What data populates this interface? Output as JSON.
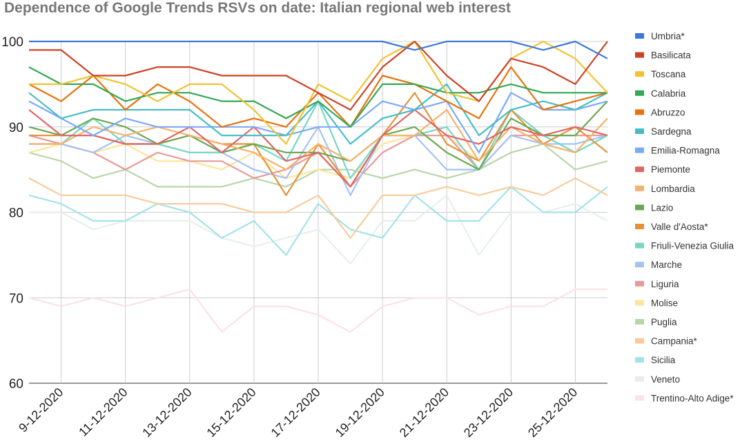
{
  "chart_data": {
    "type": "line",
    "title": "Dependence of Google Trends RSVs on date: Italian regional web interest",
    "xlabel": "",
    "ylabel": "",
    "ylim": [
      60,
      100
    ],
    "yticks": [
      60,
      70,
      80,
      90,
      100
    ],
    "grid": true,
    "legend": "right",
    "x": [
      "8-12-2020",
      "9-12-2020",
      "10-12-2020",
      "11-12-2020",
      "12-12-2020",
      "13-12-2020",
      "14-12-2020",
      "15-12-2020",
      "16-12-2020",
      "17-12-2020",
      "18-12-2020",
      "19-12-2020",
      "20-12-2020",
      "21-12-2020",
      "22-12-2020",
      "23-12-2020",
      "24-12-2020",
      "25-12-2020",
      "26-12-2020"
    ],
    "tick_labels": [
      "9-12-2020",
      "11-12-2020",
      "13-12-2020",
      "15-12-2020",
      "17-12-2020",
      "19-12-2020",
      "21-12-2020",
      "23-12-2020",
      "25-12-2020"
    ],
    "series": [
      {
        "name": "Umbria*",
        "color": "#3b78d8",
        "values": [
          100,
          100,
          100,
          100,
          100,
          100,
          100,
          100,
          100,
          100,
          100,
          100,
          99,
          100,
          100,
          100,
          99,
          100,
          98
        ]
      },
      {
        "name": "Basilicata",
        "color": "#cc4125",
        "values": [
          99,
          99,
          96,
          96,
          97,
          97,
          96,
          96,
          96,
          94,
          92,
          97,
          100,
          96,
          93,
          98,
          97,
          95,
          100
        ]
      },
      {
        "name": "Toscana",
        "color": "#f1c232",
        "values": [
          95,
          95,
          96,
          95,
          93,
          95,
          95,
          92,
          88,
          95,
          93,
          98,
          100,
          94,
          93,
          98,
          100,
          98,
          94
        ]
      },
      {
        "name": "Calabria",
        "color": "#34a853",
        "values": [
          97,
          95,
          95,
          93,
          94,
          94,
          93,
          93,
          91,
          93,
          90,
          95,
          95,
          94,
          94,
          95,
          94,
          94,
          94
        ]
      },
      {
        "name": "Abruzzo",
        "color": "#e8710a",
        "values": [
          95,
          93,
          96,
          92,
          95,
          93,
          90,
          91,
          90,
          94,
          90,
          96,
          95,
          93,
          91,
          97,
          92,
          93,
          94
        ]
      },
      {
        "name": "Sardegna",
        "color": "#46bdc6",
        "values": [
          94,
          91,
          92,
          92,
          92,
          92,
          89,
          89,
          89,
          93,
          88,
          91,
          92,
          95,
          89,
          92,
          93,
          92,
          94
        ]
      },
      {
        "name": "Emilia-Romagna",
        "color": "#7baaf7",
        "values": [
          93,
          91,
          89,
          91,
          90,
          90,
          90,
          90,
          89,
          90,
          90,
          93,
          92,
          93,
          87,
          94,
          92,
          92,
          93
        ]
      },
      {
        "name": "Piemonte",
        "color": "#e06666",
        "values": [
          92,
          89,
          89,
          88,
          88,
          90,
          87,
          90,
          86,
          87,
          83,
          89,
          92,
          89,
          88,
          90,
          89,
          90,
          89
        ]
      },
      {
        "name": "Lombardia",
        "color": "#f6b26b",
        "values": [
          88,
          88,
          90,
          89,
          90,
          89,
          88,
          87,
          85,
          88,
          86,
          89,
          89,
          92,
          86,
          90,
          88,
          87,
          91
        ]
      },
      {
        "name": "Lazio",
        "color": "#6aa84f",
        "values": [
          90,
          89,
          91,
          90,
          88,
          89,
          87,
          88,
          87,
          87,
          86,
          89,
          90,
          87,
          85,
          91,
          89,
          89,
          93
        ]
      },
      {
        "name": "Valle d'Aosta*",
        "color": "#e69138",
        "values": [
          89,
          89,
          89,
          88,
          88,
          89,
          88,
          88,
          82,
          88,
          83,
          89,
          94,
          88,
          86,
          92,
          88,
          90,
          87
        ]
      },
      {
        "name": "Friuli-Venezia Giulia",
        "color": "#76d7c4",
        "values": [
          88,
          88,
          91,
          88,
          88,
          87,
          87,
          88,
          86,
          93,
          84,
          89,
          89,
          90,
          85,
          92,
          89,
          87,
          89
        ]
      },
      {
        "name": "Marche",
        "color": "#a4c2f4",
        "values": [
          88,
          88,
          87,
          89,
          88,
          87,
          87,
          85,
          84,
          90,
          82,
          89,
          89,
          85,
          85,
          89,
          88,
          88,
          89
        ]
      },
      {
        "name": "Liguria",
        "color": "#ea9999",
        "values": [
          89,
          88,
          87,
          85,
          87,
          86,
          86,
          84,
          85,
          87,
          83,
          87,
          89,
          89,
          85,
          89,
          89,
          89,
          89
        ]
      },
      {
        "name": "Molise",
        "color": "#ffe599",
        "values": [
          87,
          88,
          87,
          88,
          86,
          86,
          85,
          87,
          84,
          85,
          84,
          88,
          89,
          89,
          86,
          90,
          88,
          87,
          91
        ]
      },
      {
        "name": "Puglia",
        "color": "#b6d7a8",
        "values": [
          87,
          86,
          84,
          85,
          83,
          83,
          83,
          84,
          83,
          85,
          85,
          84,
          85,
          84,
          85,
          87,
          88,
          85,
          86
        ]
      },
      {
        "name": "Campania*",
        "color": "#f9cb9c",
        "values": [
          84,
          82,
          82,
          82,
          81,
          81,
          81,
          80,
          80,
          82,
          77,
          82,
          82,
          83,
          82,
          83,
          82,
          84,
          82
        ]
      },
      {
        "name": "Sicilia",
        "color": "#a2e3ea",
        "values": [
          82,
          81,
          79,
          79,
          81,
          80,
          77,
          79,
          75,
          81,
          78,
          77,
          82,
          79,
          79,
          83,
          80,
          80,
          83
        ]
      },
      {
        "name": "Veneto",
        "color": "#e8eeee",
        "values": [
          80,
          80,
          78,
          79,
          79,
          79,
          77,
          76,
          77,
          78,
          74,
          79,
          79,
          82,
          75,
          80,
          80,
          81,
          79
        ]
      },
      {
        "name": "Trentino-Alto Adige*",
        "color": "#fbe1e8",
        "values": [
          70,
          69,
          70,
          69,
          70,
          71,
          66,
          69,
          69,
          68,
          66,
          69,
          70,
          70,
          68,
          69,
          69,
          71,
          71
        ]
      }
    ]
  }
}
